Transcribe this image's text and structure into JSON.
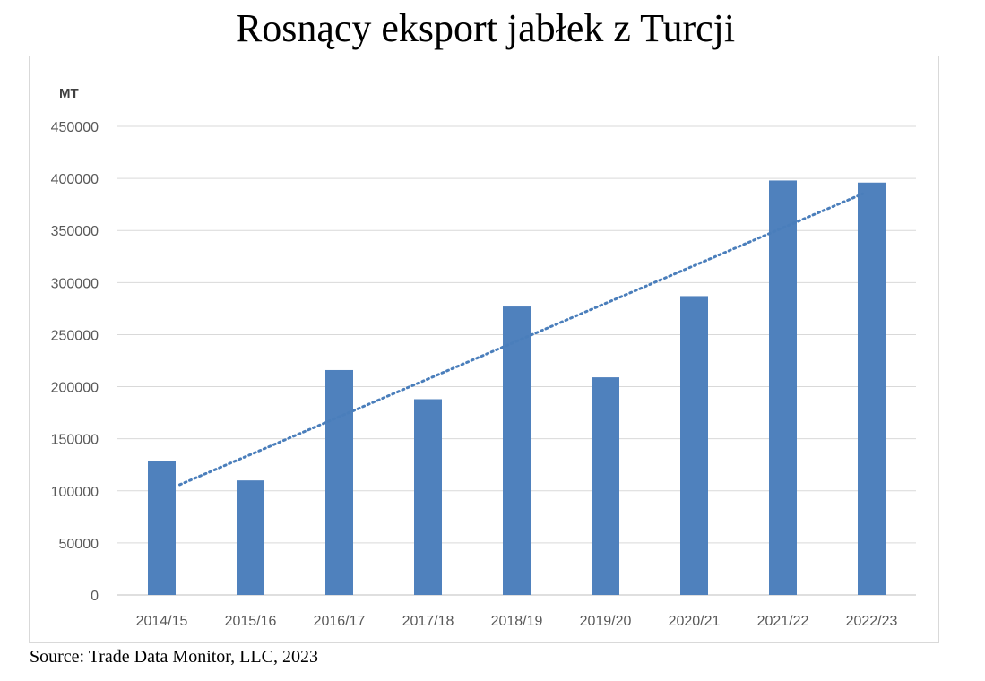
{
  "title": "Rosnący eksport jabłek z Turcji",
  "source": "Source: Trade Data Monitor, LLC, 2023",
  "chart_data": {
    "type": "bar",
    "title": "Rosnący eksport jabłek z Turcji",
    "ylabel": "MT",
    "xlabel": "",
    "categories": [
      "2014/15",
      "2015/16",
      "2016/17",
      "2017/18",
      "2018/19",
      "2019/20",
      "2020/21",
      "2021/22",
      "2022/23"
    ],
    "values": [
      129000,
      110000,
      216000,
      188000,
      277000,
      209000,
      287000,
      398000,
      396000
    ],
    "ylim": [
      0,
      450000
    ],
    "yticks": [
      "0",
      "50000",
      "100000",
      "150000",
      "200000",
      "250000",
      "300000",
      "350000",
      "400000",
      "450000"
    ],
    "trendline": {
      "type": "linear",
      "style": "dotted",
      "color": "#4a7ebb"
    },
    "grid": true,
    "legend": "none",
    "bar_color": "#4f81bd"
  }
}
